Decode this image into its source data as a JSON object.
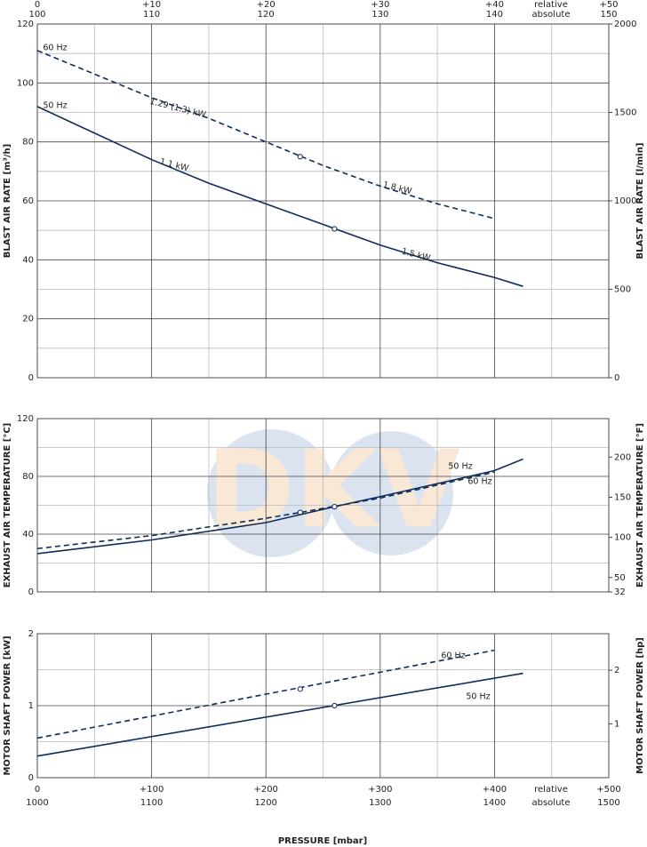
{
  "watermark": "DKV",
  "top_axis": {
    "xlim": [
      0,
      50
    ],
    "xticks": [
      {
        "value": 0,
        "label": "0"
      },
      {
        "value": 10,
        "label": "+10"
      },
      {
        "value": 20,
        "label": "+20"
      },
      {
        "value": 30,
        "label": "+30"
      },
      {
        "value": 40,
        "label": "+40"
      },
      {
        "value": 50,
        "label": "+50"
      }
    ],
    "absolute_xlim": [
      100,
      150
    ],
    "absolute_ticks": [
      100,
      110,
      120,
      130,
      140,
      150
    ],
    "relative_label": "relative",
    "absolute_label": "absolute"
  },
  "x_axis": {
    "title": "PRESSURE  [mbar]",
    "xlim": [
      0,
      500
    ],
    "xticks": [
      {
        "value": 0,
        "label": "0"
      },
      {
        "value": 100,
        "label": "+100"
      },
      {
        "value": 200,
        "label": "+200"
      },
      {
        "value": 300,
        "label": "+300"
      },
      {
        "value": 400,
        "label": "+400"
      },
      {
        "value": 500,
        "label": "+500"
      }
    ],
    "minor_ticks": [
      50,
      150,
      250,
      350,
      450
    ],
    "absolute_xlim": [
      1000,
      1500
    ],
    "absolute_ticks": [
      1000,
      1100,
      1200,
      1300,
      1400,
      1500
    ],
    "relative_label": "relative",
    "absolute_label": "absolute"
  },
  "chart_data": [
    {
      "type": "line",
      "ylabel": "BLAST AIR RATE  [m³/h]",
      "y2label": "BLAST AIR RATE  [l/min]",
      "ylim": [
        0,
        120
      ],
      "yticks": [
        0,
        20,
        40,
        60,
        80,
        100,
        120
      ],
      "y_minor_ticks": [
        10,
        30,
        50,
        70,
        90,
        110
      ],
      "y2lim": [
        0,
        2000
      ],
      "y2ticks": [
        0,
        500,
        1000,
        1500,
        2000
      ],
      "series": [
        {
          "name": "60 Hz",
          "color": "#0f2d5a",
          "dashed": true,
          "x": [
            0,
            50,
            100,
            150,
            200,
            250,
            300,
            350,
            400
          ],
          "values": [
            111,
            103,
            95,
            88,
            80,
            72,
            65,
            59,
            54
          ],
          "power_labels": [
            "1.29 (1.3) kW",
            "1.8 kW"
          ],
          "marker": {
            "x": 230,
            "value": 75
          }
        },
        {
          "name": "50 Hz",
          "color": "#0f2d5a",
          "dashed": false,
          "x": [
            0,
            50,
            100,
            150,
            200,
            250,
            300,
            350,
            400,
            425
          ],
          "values": [
            92,
            83,
            74,
            66,
            59,
            52,
            45,
            39,
            34,
            31
          ],
          "power_labels": [
            "1.1 kW",
            "1.5 kW"
          ],
          "marker": {
            "x": 260,
            "value": 50.5
          }
        }
      ]
    },
    {
      "type": "line",
      "ylabel": "EXHAUST AIR TEMPERATURE  [°C]",
      "y2label": "EXHAUST AIR TEMPERATURE  [°F]",
      "ylim": [
        0,
        120
      ],
      "yticks": [
        0,
        40,
        80,
        120
      ],
      "y_minor_ticks": [
        20,
        60,
        100
      ],
      "y2lim": [
        32,
        248
      ],
      "y2ticks": [
        32,
        50,
        100,
        150,
        200
      ],
      "series": [
        {
          "name": "60 Hz",
          "color": "#0f2d5a",
          "dashed": true,
          "x": [
            0,
            100,
            200,
            230,
            300,
            400
          ],
          "values": [
            30,
            39,
            51,
            55,
            65,
            83
          ],
          "marker": {
            "x": 230,
            "value": 55
          }
        },
        {
          "name": "50 Hz",
          "color": "#0f2d5a",
          "dashed": false,
          "x": [
            0,
            100,
            200,
            260,
            300,
            400,
            425
          ],
          "values": [
            26.5,
            36,
            48,
            59,
            66,
            84,
            92
          ],
          "marker": {
            "x": 260,
            "value": 59
          }
        }
      ]
    },
    {
      "type": "line",
      "ylabel": "MOTOR SHAFT POWER  [kW]",
      "y2label": "MOTOR SHAFT POWER  [hp]",
      "ylim": [
        0,
        2
      ],
      "yticks": [
        0,
        1,
        2
      ],
      "y_minor_ticks": [
        0.5,
        1.5
      ],
      "y2lim": [
        0,
        2.68
      ],
      "y2ticks": [
        1,
        2
      ],
      "series": [
        {
          "name": "60 Hz",
          "color": "#0f2d5a",
          "dashed": true,
          "x": [
            0,
            400
          ],
          "values": [
            0.55,
            1.77
          ],
          "marker": {
            "x": 230,
            "value": 1.23
          }
        },
        {
          "name": "50 Hz",
          "color": "#0f2d5a",
          "dashed": false,
          "x": [
            0,
            425
          ],
          "values": [
            0.3,
            1.45
          ],
          "marker": {
            "x": 260,
            "value": 1.0
          }
        }
      ]
    }
  ]
}
